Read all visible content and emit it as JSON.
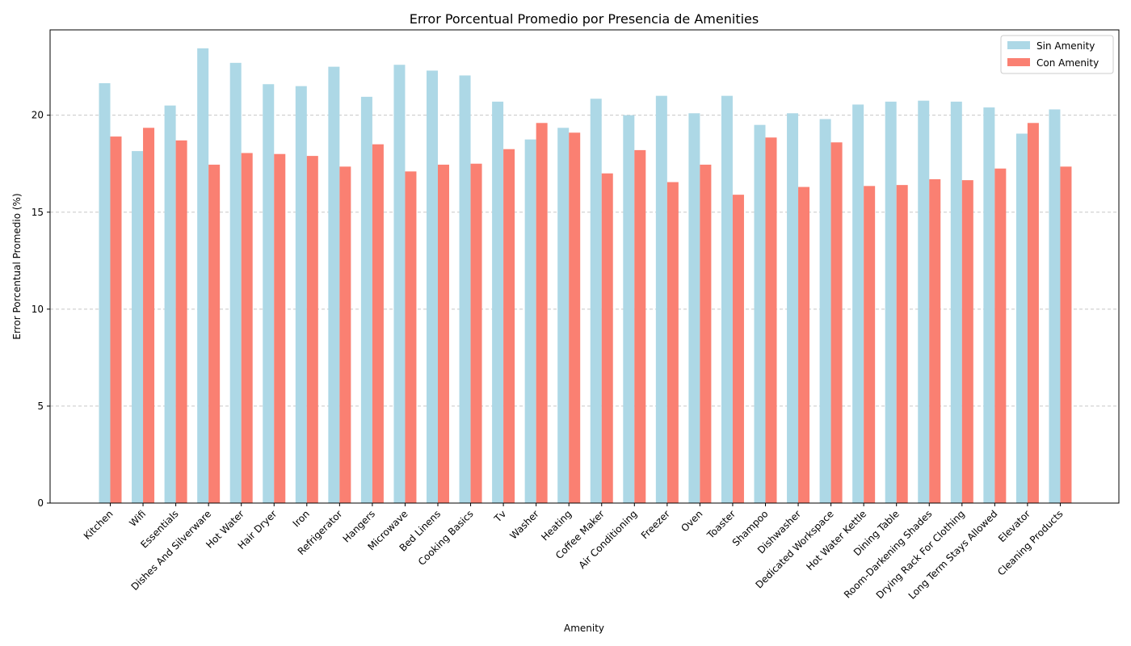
{
  "colors": {
    "sin": "#add8e6",
    "con": "#fa8072",
    "grid": "#c8c8c8",
    "axis": "#000000"
  },
  "chart_data": {
    "type": "bar",
    "title": "Error Porcentual Promedio por Presencia de Amenities",
    "xlabel": "Amenity",
    "ylabel": "Error Porcentual Promedio (%)",
    "ylim": [
      0,
      24.4
    ],
    "yticks": [
      0,
      5,
      10,
      15,
      20
    ],
    "ytick_labels": [
      "0",
      "5",
      "10",
      "15",
      "20"
    ],
    "grid": "y-dashed",
    "legend_position": "top-right",
    "categories": [
      "Kitchen",
      "Wifi",
      "Essentials",
      "Dishes And Silverware",
      "Hot Water",
      "Hair Dryer",
      "Iron",
      "Refrigerator",
      "Hangers",
      "Microwave",
      "Bed Linens",
      "Cooking Basics",
      "Tv",
      "Washer",
      "Heating",
      "Coffee Maker",
      "Air Conditioning",
      "Freezer",
      "Oven",
      "Toaster",
      "Shampoo",
      "Dishwasher",
      "Dedicated Workspace",
      "Hot Water Kettle",
      "Dining Table",
      "Room-Darkening Shades",
      "Drying Rack For Clothing",
      "Long Term Stays Allowed",
      "Elevator",
      "Cleaning Products"
    ],
    "series": [
      {
        "name": "Sin Amenity",
        "values": [
          21.65,
          18.15,
          20.5,
          23.45,
          22.7,
          21.6,
          21.5,
          22.5,
          20.95,
          22.6,
          22.3,
          22.05,
          20.7,
          18.75,
          19.35,
          20.85,
          20.0,
          21.0,
          20.1,
          21.0,
          19.5,
          20.1,
          19.8,
          20.55,
          20.7,
          20.75,
          20.7,
          20.4,
          19.05,
          20.3
        ]
      },
      {
        "name": "Con Amenity",
        "values": [
          18.9,
          19.35,
          18.7,
          17.45,
          18.05,
          18.0,
          17.9,
          17.35,
          18.5,
          17.1,
          17.45,
          17.5,
          18.25,
          19.6,
          19.1,
          17.0,
          18.2,
          16.55,
          17.45,
          15.9,
          18.85,
          16.3,
          18.6,
          16.35,
          16.4,
          16.7,
          16.65,
          17.25,
          19.6,
          17.35
        ]
      }
    ]
  }
}
